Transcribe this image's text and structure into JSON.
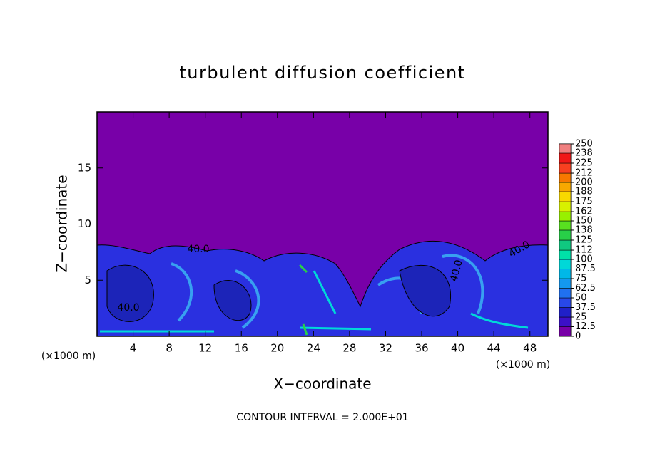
{
  "chart_data": {
    "type": "contour",
    "title": "turbulent diffusion coefficient",
    "xlabel": "X−coordinate",
    "ylabel": "Z−coordinate",
    "xunit": "(×1000 m)",
    "yunit": "(×1000 m)",
    "xlim": [
      0,
      50
    ],
    "ylim": [
      0,
      20
    ],
    "xticks": [
      4,
      8,
      12,
      16,
      20,
      24,
      28,
      32,
      36,
      40,
      44,
      48
    ],
    "yticks": [
      5,
      10,
      15
    ],
    "colorbar": {
      "ticks": [
        0,
        12.5,
        25,
        37.5,
        50,
        62.5,
        75,
        87.5,
        100,
        112,
        125,
        138,
        150,
        162,
        175,
        188,
        200,
        212,
        225,
        238,
        250
      ],
      "colors": [
        "#7800a8",
        "#3c10c8",
        "#2020c8",
        "#2848e8",
        "#2070f0",
        "#1498f0",
        "#00b8e8",
        "#00d8d8",
        "#00e0a8",
        "#10c880",
        "#28d048",
        "#58e020",
        "#98f000",
        "#d8f000",
        "#f8d800",
        "#f8a800",
        "#f87800",
        "#f84020",
        "#f01818",
        "#f08080"
      ]
    },
    "contour_labels": [
      "40.0"
    ],
    "footnote": "CONTOUR INTERVAL = 2.000E+01"
  }
}
